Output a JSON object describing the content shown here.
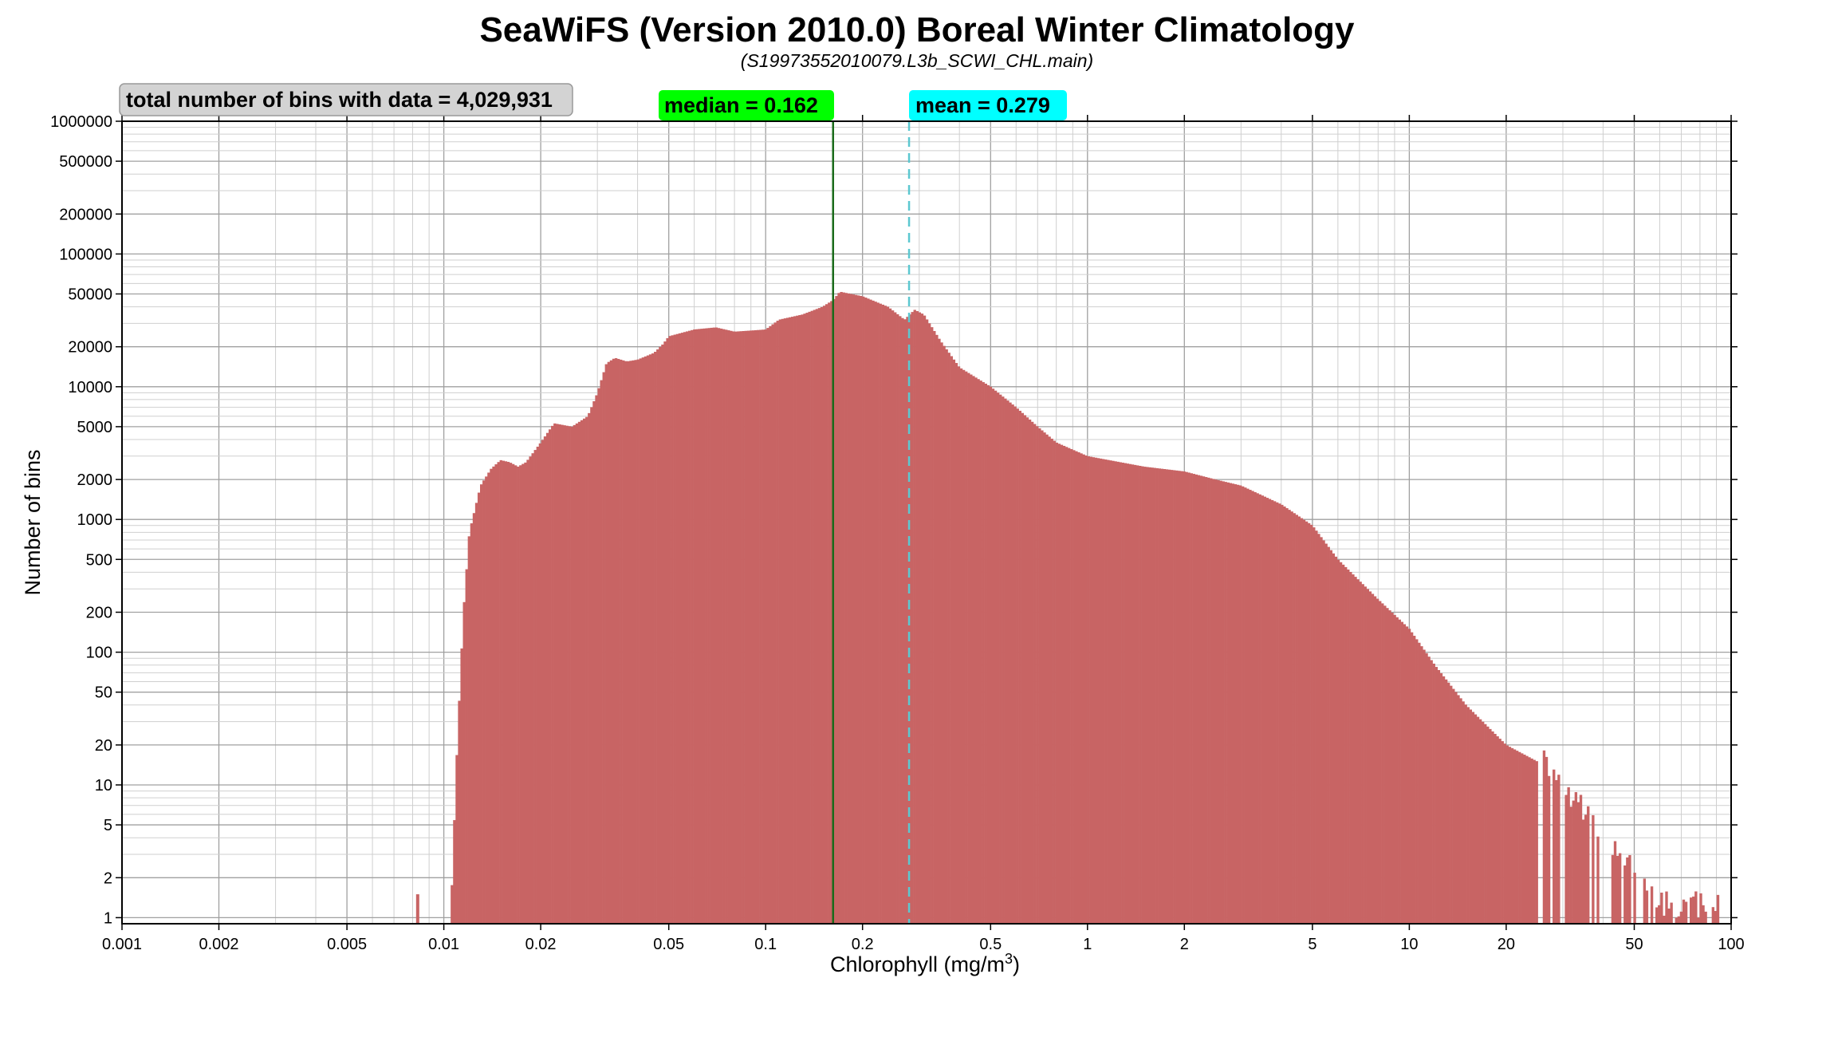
{
  "chart_data": {
    "type": "bar",
    "title": "SeaWiFS (Version 2010.0) Boreal Winter Climatology",
    "subtitle": "(S19973552010079.L3b_SCWI_CHL.main)",
    "xlabel": "Chlorophyll (mg/m",
    "xlabel_superscript": "3",
    "xlabel_suffix": ")",
    "ylabel": "Number of bins",
    "xscale": "log",
    "yscale": "log",
    "xlim": [
      0.001,
      100
    ],
    "ylim": [
      0.9,
      1000000
    ],
    "grid": true,
    "xticks": [
      0.001,
      0.002,
      0.005,
      0.01,
      0.02,
      0.05,
      0.1,
      0.2,
      0.5,
      1,
      2,
      5,
      10,
      20,
      50,
      100
    ],
    "xtick_labels": [
      "0.001",
      "0.002",
      "0.005",
      "0.01",
      "0.02",
      "0.05",
      "0.1",
      "0.2",
      "0.5",
      "1",
      "2",
      "5",
      "10",
      "20",
      "50",
      "100"
    ],
    "yticks": [
      1,
      2,
      5,
      10,
      20,
      50,
      100,
      200,
      500,
      1000,
      2000,
      5000,
      10000,
      20000,
      50000,
      100000,
      200000,
      500000,
      1000000
    ],
    "ytick_labels": [
      "1",
      "2",
      "5",
      "10",
      "20",
      "50",
      "100",
      "200",
      "500",
      "1000",
      "2000",
      "5000",
      "10000",
      "20000",
      "50000",
      "100000",
      "200000",
      "500000",
      "1000000"
    ],
    "total_label": "total number of bins with data = 4,029,931",
    "median_label": "median =  0.162",
    "median": 0.162,
    "mean_label": "mean =  0.279",
    "mean": 0.279,
    "colors": {
      "bars": "#c86464",
      "median_line": "#1a6b1a",
      "mean_line": "#5cc8d0",
      "median_box": "#00ff00",
      "mean_box": "#00ffff",
      "total_box": "#d3d3d3"
    },
    "histogram_profile": [
      {
        "x": 0.0083,
        "y": 1
      },
      {
        "x": 0.0105,
        "y": 1
      },
      {
        "x": 0.011,
        "y": 20
      },
      {
        "x": 0.0115,
        "y": 200
      },
      {
        "x": 0.012,
        "y": 800
      },
      {
        "x": 0.013,
        "y": 1800
      },
      {
        "x": 0.014,
        "y": 2400
      },
      {
        "x": 0.015,
        "y": 2800
      },
      {
        "x": 0.016,
        "y": 2700
      },
      {
        "x": 0.017,
        "y": 2500
      },
      {
        "x": 0.018,
        "y": 2700
      },
      {
        "x": 0.02,
        "y": 3800
      },
      {
        "x": 0.022,
        "y": 5300
      },
      {
        "x": 0.025,
        "y": 5000
      },
      {
        "x": 0.028,
        "y": 6000
      },
      {
        "x": 0.03,
        "y": 9000
      },
      {
        "x": 0.032,
        "y": 15000
      },
      {
        "x": 0.034,
        "y": 16500
      },
      {
        "x": 0.037,
        "y": 15500
      },
      {
        "x": 0.04,
        "y": 16000
      },
      {
        "x": 0.045,
        "y": 18000
      },
      {
        "x": 0.048,
        "y": 21000
      },
      {
        "x": 0.05,
        "y": 24000
      },
      {
        "x": 0.06,
        "y": 27000
      },
      {
        "x": 0.07,
        "y": 28000
      },
      {
        "x": 0.08,
        "y": 26000
      },
      {
        "x": 0.09,
        "y": 26500
      },
      {
        "x": 0.1,
        "y": 27000
      },
      {
        "x": 0.11,
        "y": 32000
      },
      {
        "x": 0.13,
        "y": 35000
      },
      {
        "x": 0.15,
        "y": 40000
      },
      {
        "x": 0.162,
        "y": 45000
      },
      {
        "x": 0.17,
        "y": 52000
      },
      {
        "x": 0.2,
        "y": 48000
      },
      {
        "x": 0.24,
        "y": 40000
      },
      {
        "x": 0.27,
        "y": 32000
      },
      {
        "x": 0.29,
        "y": 38000
      },
      {
        "x": 0.31,
        "y": 35000
      },
      {
        "x": 0.35,
        "y": 22000
      },
      {
        "x": 0.4,
        "y": 14000
      },
      {
        "x": 0.5,
        "y": 10000
      },
      {
        "x": 0.6,
        "y": 7000
      },
      {
        "x": 0.7,
        "y": 5000
      },
      {
        "x": 0.8,
        "y": 3800
      },
      {
        "x": 1.0,
        "y": 3000
      },
      {
        "x": 1.5,
        "y": 2500
      },
      {
        "x": 2.0,
        "y": 2300
      },
      {
        "x": 2.5,
        "y": 2000
      },
      {
        "x": 3.0,
        "y": 1800
      },
      {
        "x": 4.0,
        "y": 1300
      },
      {
        "x": 5.0,
        "y": 900
      },
      {
        "x": 6.0,
        "y": 500
      },
      {
        "x": 8.0,
        "y": 250
      },
      {
        "x": 10.0,
        "y": 150
      },
      {
        "x": 12.0,
        "y": 80
      },
      {
        "x": 15.0,
        "y": 40
      },
      {
        "x": 20.0,
        "y": 20
      },
      {
        "x": 25.0,
        "y": 15
      },
      {
        "x": 30.0,
        "y": 8
      },
      {
        "x": 35.0,
        "y": 5
      },
      {
        "x": 40.0,
        "y": 3
      },
      {
        "x": 50.0,
        "y": 2
      },
      {
        "x": 60.0,
        "y": 1
      },
      {
        "x": 92.0,
        "y": 1
      }
    ]
  }
}
